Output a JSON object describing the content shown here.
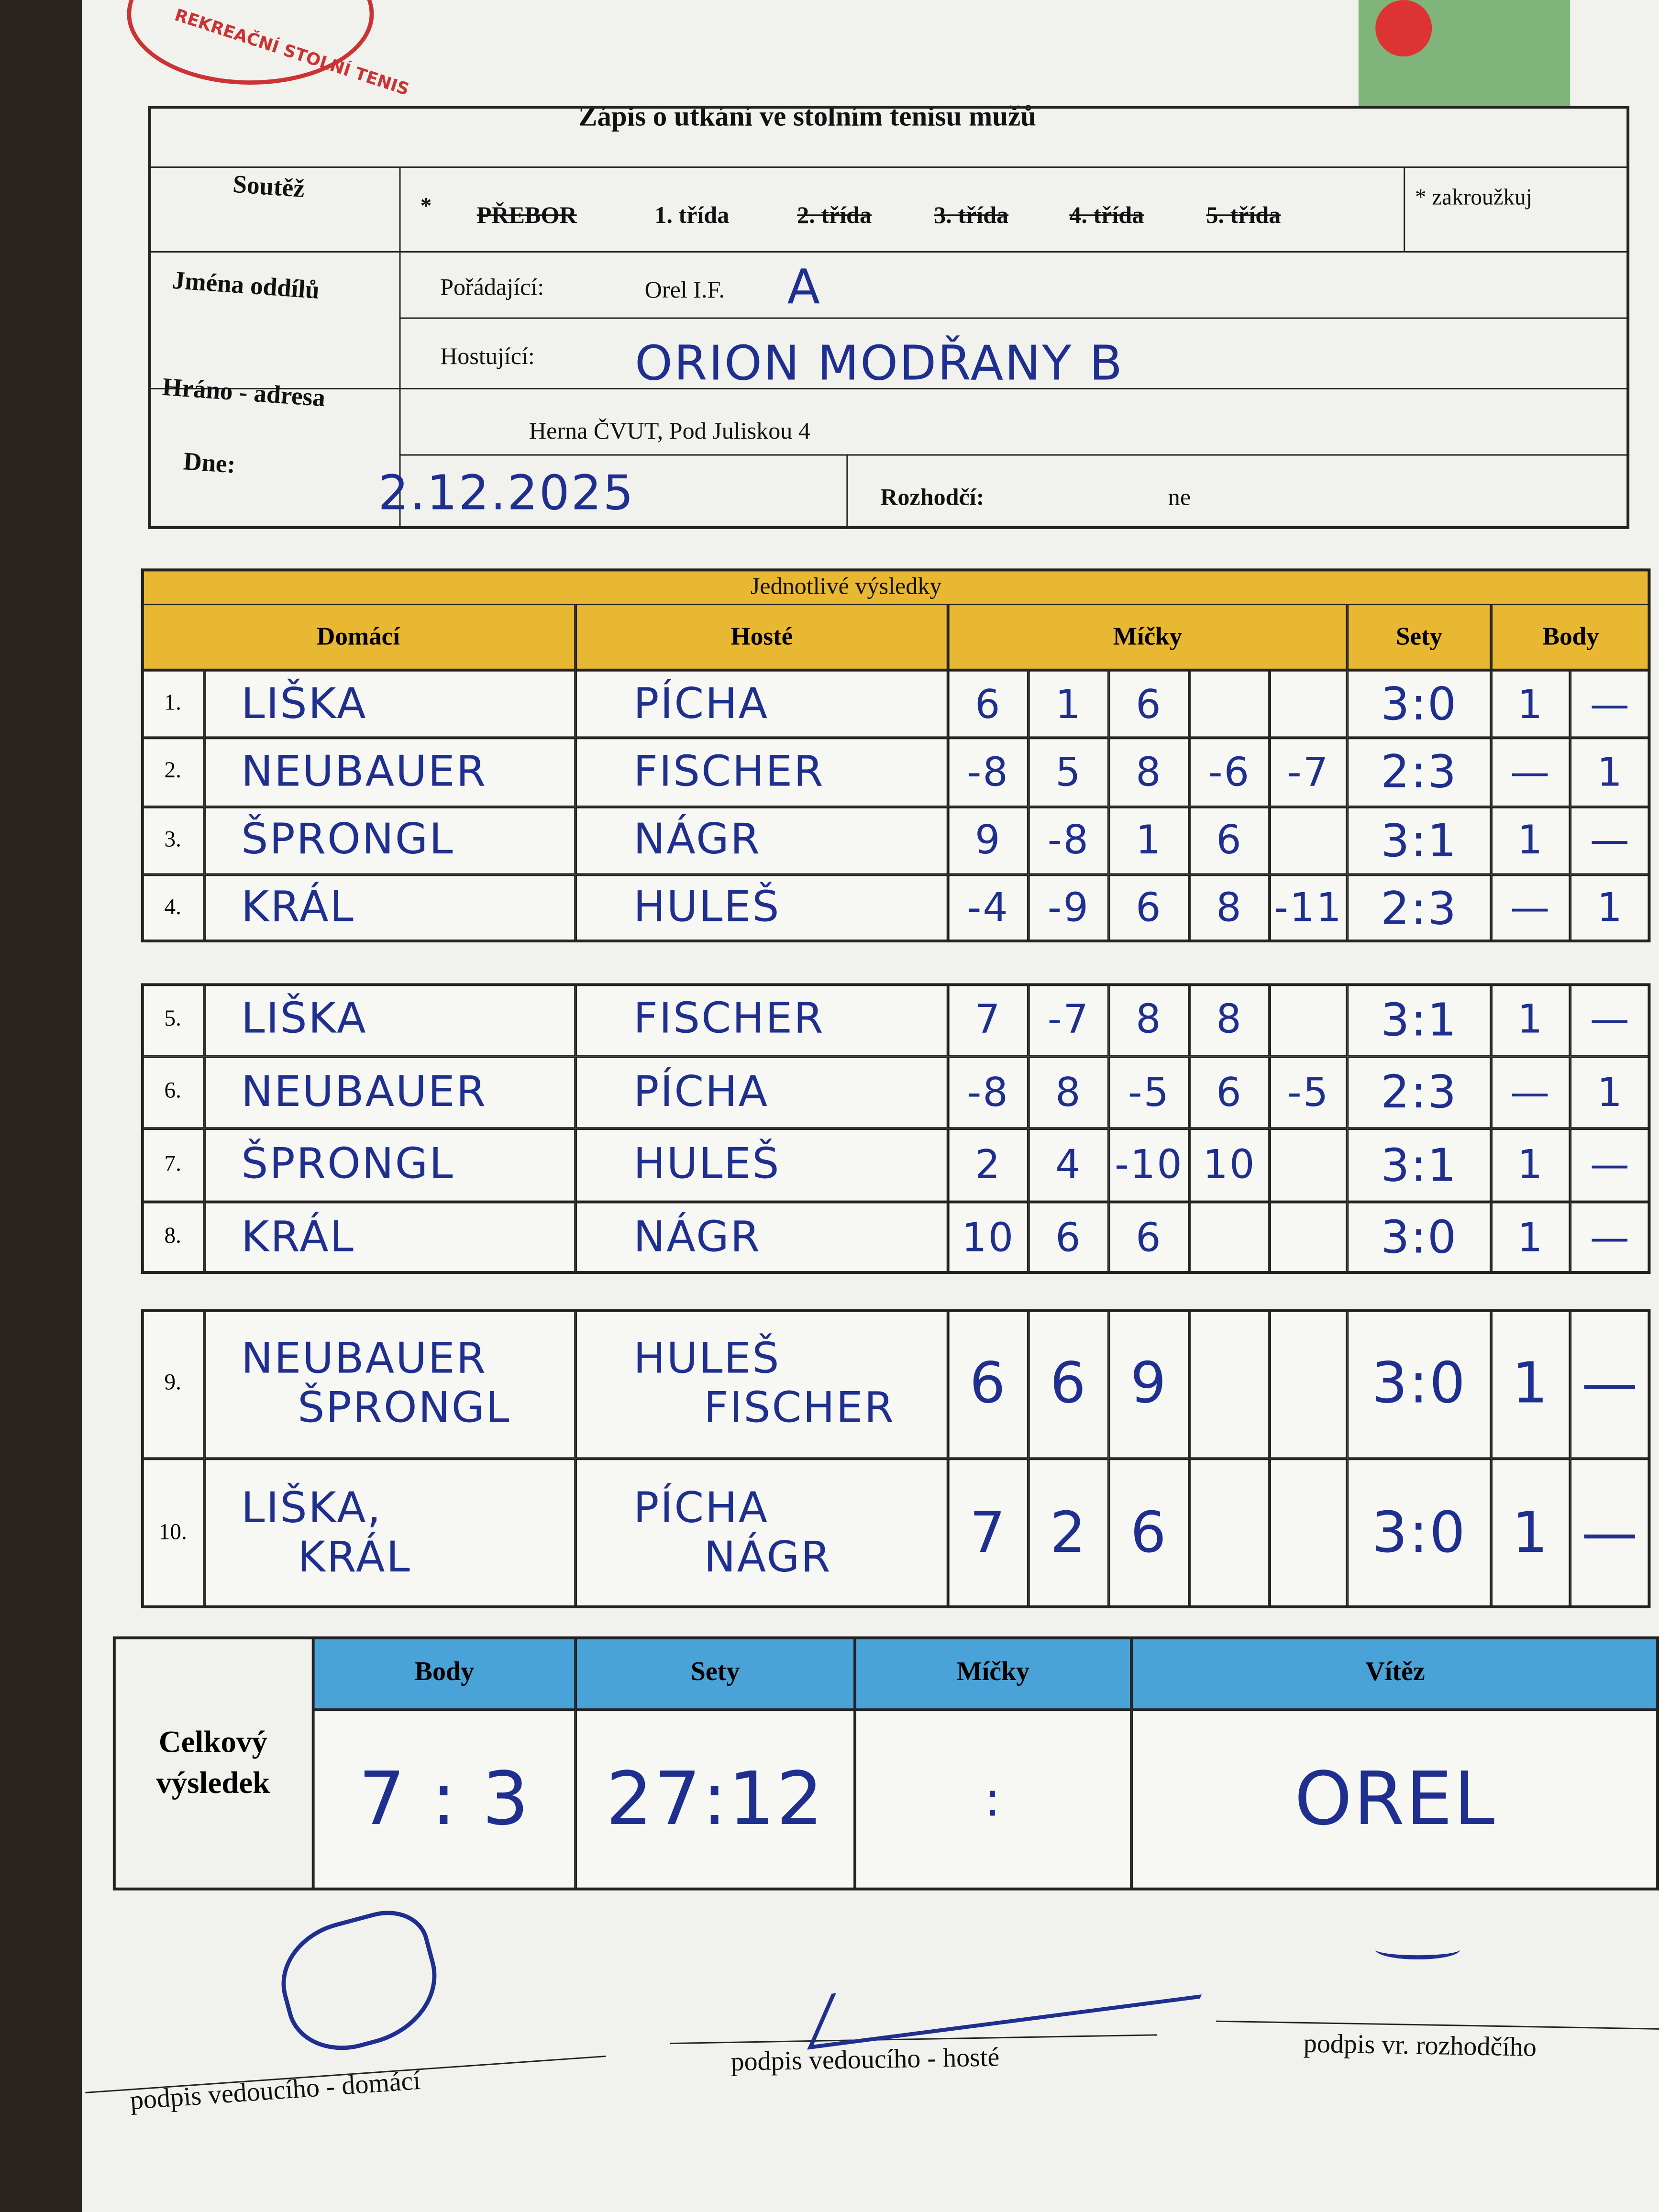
{
  "logo_text": "REKREAČNÍ STOLNÍ TENIS",
  "title": "Zápis o utkání ve stolním tenisu mužů",
  "header": {
    "competition_label": "Soutěž",
    "star": "*",
    "options": [
      {
        "text": "PŘEBOR",
        "struck": true
      },
      {
        "text": "1. třída",
        "struck": false
      },
      {
        "text": "2. třída",
        "struck": true
      },
      {
        "text": "3. třída",
        "struck": true
      },
      {
        "text": "4. třída",
        "struck": true
      },
      {
        "text": "5. třída",
        "struck": true
      }
    ],
    "note": "* zakroužkuj",
    "teams_label": "Jména oddílů",
    "home_label": "Pořádající:",
    "home_team": "Orel I.F.",
    "home_team_suffix": "A",
    "guest_label": "Hostující:",
    "guest_team": "ORION MODŘANY B",
    "venue_label": "Hráno - adresa",
    "venue": "Herna ČVUT, Pod Juliskou 4",
    "date_label": "Dne:",
    "date": "2.12.2025",
    "referee_label": "Rozhodčí:",
    "referee": "ne"
  },
  "results": {
    "title": "Jednotlivé výsledky",
    "columns": [
      "Domácí",
      "Hosté",
      "Míčky",
      "Sety",
      "Body"
    ],
    "groups": [
      [
        {
          "no": "1.",
          "home": [
            "LIŠKA"
          ],
          "guest": [
            "PÍCHA"
          ],
          "balls": [
            6,
            1,
            6,
            null,
            null
          ],
          "sets": "3:0",
          "points": [
            "1",
            "—"
          ]
        },
        {
          "no": "2.",
          "home": [
            "NEUBAUER"
          ],
          "guest": [
            "FISCHER"
          ],
          "balls": [
            -8,
            5,
            8,
            -6,
            -7
          ],
          "sets": "2:3",
          "points": [
            "—",
            "1"
          ]
        },
        {
          "no": "3.",
          "home": [
            "ŠPRONGL"
          ],
          "guest": [
            "NÁGR"
          ],
          "balls": [
            9,
            -8,
            1,
            6,
            null
          ],
          "sets": "3:1",
          "points": [
            "1",
            "—"
          ]
        },
        {
          "no": "4.",
          "home": [
            "KRÁL"
          ],
          "guest": [
            "HULEŠ"
          ],
          "balls": [
            -4,
            -9,
            6,
            8,
            -11
          ],
          "sets": "2:3",
          "points": [
            "—",
            "1"
          ]
        }
      ],
      [
        {
          "no": "5.",
          "home": [
            "LIŠKA"
          ],
          "guest": [
            "FISCHER"
          ],
          "balls": [
            7,
            -7,
            8,
            8,
            null
          ],
          "sets": "3:1",
          "points": [
            "1",
            "—"
          ]
        },
        {
          "no": "6.",
          "home": [
            "NEUBAUER"
          ],
          "guest": [
            "PÍCHA"
          ],
          "balls": [
            -8,
            8,
            -5,
            6,
            -5
          ],
          "sets": "2:3",
          "points": [
            "—",
            "1"
          ]
        },
        {
          "no": "7.",
          "home": [
            "ŠPRONGL"
          ],
          "guest": [
            "HULEŠ"
          ],
          "balls": [
            2,
            4,
            -10,
            10,
            null
          ],
          "sets": "3:1",
          "points": [
            "1",
            "—"
          ]
        },
        {
          "no": "8.",
          "home": [
            "KRÁL"
          ],
          "guest": [
            "NÁGR"
          ],
          "balls": [
            10,
            6,
            6,
            null,
            null
          ],
          "sets": "3:0",
          "points": [
            "1",
            "—"
          ]
        }
      ],
      [
        {
          "no": "9.",
          "home": [
            "NEUBAUER",
            "ŠPRONGL"
          ],
          "guest": [
            "HULEŠ",
            "FISCHER"
          ],
          "balls": [
            6,
            6,
            9,
            null,
            null
          ],
          "sets": "3:0",
          "points": [
            "1",
            "—"
          ]
        },
        {
          "no": "10.",
          "home": [
            "LIŠKA,",
            "KRÁL"
          ],
          "guest": [
            "PÍCHA",
            "NÁGR"
          ],
          "balls": [
            7,
            2,
            6,
            null,
            null
          ],
          "sets": "3:0",
          "points": [
            "1",
            "—"
          ]
        }
      ]
    ]
  },
  "total": {
    "label": "Celkový výsledek",
    "columns": [
      "Body",
      "Sety",
      "Míčky",
      "Vítěz"
    ],
    "values": [
      "7 : 3",
      "27:12",
      ":",
      "OREL"
    ]
  },
  "signatures": [
    "podpis vedoucího - domácí",
    "podpis vedoucího - hosté",
    "podpis vr. rozhodčího"
  ]
}
